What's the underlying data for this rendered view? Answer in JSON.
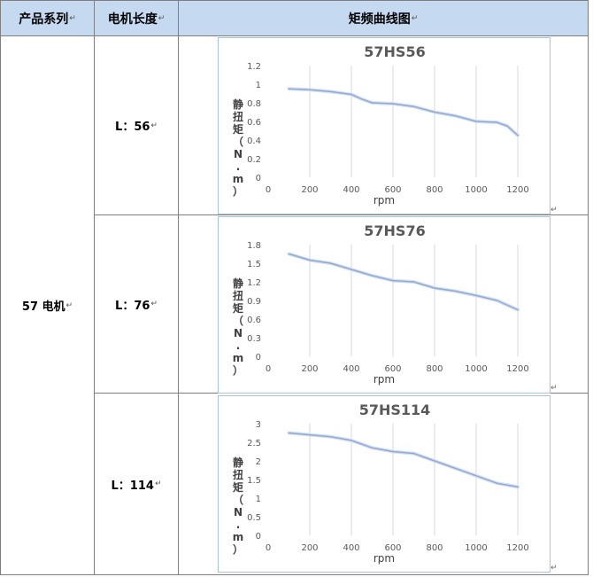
{
  "header": {
    "series_col": "产品系列",
    "length_col": "电机长度",
    "curve_col": "矩频曲线图"
  },
  "series_name": "57 电机",
  "rows": [
    {
      "length_label": "L：56"
    },
    {
      "length_label": "L：76"
    },
    {
      "length_label": "L：114"
    }
  ],
  "paragraph_mark": "↵",
  "chart_data": [
    {
      "type": "line",
      "title": "57HS56",
      "xlabel": "rpm",
      "ylabel": "静扭矩（N.m）",
      "x": [
        100,
        200,
        300,
        400,
        450,
        500,
        600,
        700,
        800,
        900,
        1000,
        1100,
        1150,
        1200
      ],
      "values": [
        0.95,
        0.94,
        0.92,
        0.89,
        0.84,
        0.8,
        0.79,
        0.76,
        0.7,
        0.66,
        0.6,
        0.59,
        0.55,
        0.45
      ],
      "xlim": [
        0,
        1200
      ],
      "ylim": [
        0,
        1.2
      ],
      "xticks": [
        "0",
        "200",
        "400",
        "600",
        "800",
        "1000",
        "1200"
      ],
      "yticks": [
        "0",
        "0.2",
        "0.4",
        "0.6",
        "0.8",
        "1",
        "1.2"
      ],
      "grid": "vertical",
      "color": "#8fa9d4"
    },
    {
      "type": "line",
      "title": "57HS76",
      "xlabel": "rpm",
      "ylabel": "静扭矩（N.m）",
      "x": [
        100,
        200,
        300,
        400,
        500,
        600,
        700,
        800,
        900,
        1000,
        1100,
        1200
      ],
      "values": [
        1.65,
        1.55,
        1.5,
        1.4,
        1.3,
        1.22,
        1.2,
        1.1,
        1.05,
        0.98,
        0.9,
        0.75
      ],
      "xlim": [
        0,
        1200
      ],
      "ylim": [
        0,
        1.8
      ],
      "xticks": [
        "0",
        "200",
        "400",
        "600",
        "800",
        "1000",
        "1200"
      ],
      "yticks": [
        "0",
        "0.3",
        "0.6",
        "0.9",
        "1.2",
        "1.5",
        "1.8"
      ],
      "grid": "vertical",
      "color": "#8fa9d4"
    },
    {
      "type": "line",
      "title": "57HS114",
      "xlabel": "rpm",
      "ylabel": "静扭矩（N.m）",
      "x": [
        100,
        200,
        300,
        400,
        500,
        600,
        700,
        800,
        900,
        1000,
        1100,
        1200
      ],
      "values": [
        2.75,
        2.7,
        2.65,
        2.55,
        2.35,
        2.25,
        2.2,
        2.0,
        1.8,
        1.6,
        1.4,
        1.3
      ],
      "xlim": [
        0,
        1200
      ],
      "ylim": [
        0,
        3
      ],
      "xticks": [
        "0",
        "200",
        "400",
        "600",
        "800",
        "1000",
        "1200"
      ],
      "yticks": [
        "0",
        "0.5",
        "1",
        "1.5",
        "2",
        "2.5",
        "3"
      ],
      "grid": "vertical",
      "color": "#8fa9d4"
    }
  ]
}
